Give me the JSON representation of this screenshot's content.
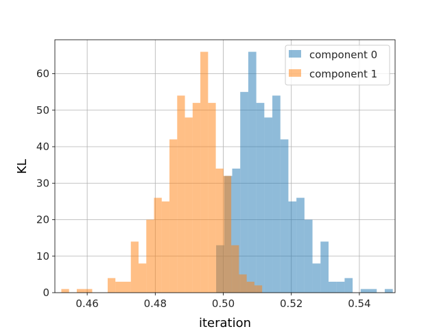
{
  "chart_data": {
    "type": "bar",
    "title": "",
    "xlabel": "iteration",
    "ylabel": "KL",
    "xlim": [
      0.4505,
      0.5505
    ],
    "ylim": [
      0,
      69.3
    ],
    "xticks": [
      0.46,
      0.48,
      0.5,
      0.52,
      0.54
    ],
    "xtick_labels": [
      "0.46",
      "0.48",
      "0.50",
      "0.52",
      "0.54"
    ],
    "yticks": [
      0,
      10,
      20,
      30,
      40,
      50,
      60
    ],
    "ytick_labels": [
      "0",
      "10",
      "20",
      "30",
      "40",
      "50",
      "60"
    ],
    "grid": true,
    "legend_position": "upper-right",
    "series": [
      {
        "name": "component 0",
        "color": "#1f77b4",
        "opacity": 0.5,
        "bin_start": 0.4979,
        "bin_width": 0.00236,
        "counts": [
          13,
          32,
          34,
          55,
          66,
          52,
          48,
          54,
          42,
          25,
          26,
          20,
          8,
          14,
          3,
          3,
          4,
          0,
          1,
          1,
          0,
          1
        ]
      },
      {
        "name": "component 1",
        "color": "#ff7f0e",
        "opacity": 0.5,
        "bin_start": 0.4524,
        "bin_width": 0.00227,
        "counts": [
          1,
          0,
          1,
          1,
          0,
          0,
          4,
          3,
          3,
          14,
          8,
          20,
          26,
          25,
          42,
          54,
          48,
          52,
          66,
          52,
          34,
          32,
          13,
          5,
          3,
          2
        ]
      }
    ]
  }
}
